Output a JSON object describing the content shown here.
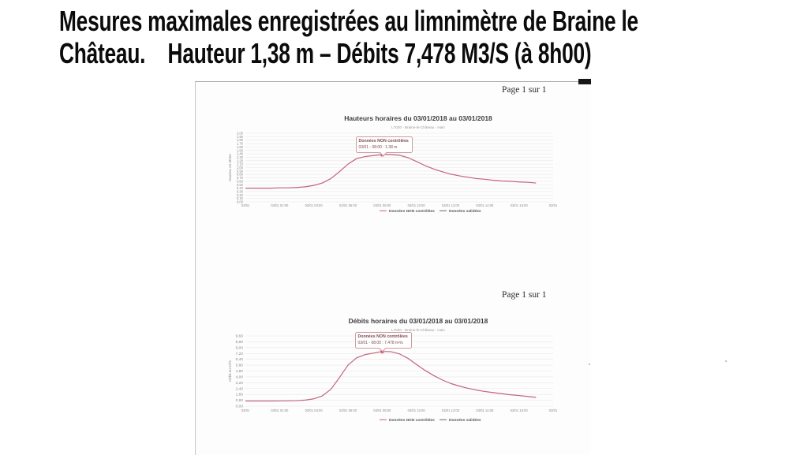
{
  "slide": {
    "title_line1": "Mesures maximales enregistrées au limnimètre de Braine le",
    "title_line2": "Château.    Hauteur 1,38 m – Débits 7,478 M3/S (à 8h00)"
  },
  "document": {
    "page_label": "Page 1 sur 1"
  },
  "colors": {
    "curve": "#c2647a",
    "marker": "#c63b4e",
    "marker_halo": "#eaa8b2",
    "grid": "#e7e7e7",
    "tick_text": "#8a8a8a",
    "chart_title": "#3d3d3d",
    "subtitle_text": "#9a9a9a",
    "legend_text": "#555555",
    "legend_validated_dash": "#5a6b7a"
  },
  "chart_data": [
    {
      "type": "line",
      "title": "Hauteurs horaires du 03/01/2018 au 03/01/2018",
      "subtitle": "L7020 - Braine-le-Château - Hain",
      "ylabel": "Hauteur en Mètre",
      "ylim": [
        0,
        2.0
      ],
      "ystep": 0.1,
      "xlim": [
        0,
        18
      ],
      "x_tick_hours": [
        0,
        2,
        4,
        6,
        8,
        10,
        12,
        14,
        16,
        18
      ],
      "x_tick_labels": [
        "03/01",
        "03/01 02:00",
        "03/01 04:00",
        "03/01 06:00",
        "03/01 08:00",
        "03/01 10:00",
        "03/01 12:00",
        "03/01 14:00",
        "03/01 16:00",
        "03/01"
      ],
      "grid": true,
      "legend_position": "bottom",
      "legend": [
        "Données NON contrôlées",
        "Données validées"
      ],
      "series": [
        {
          "name": "Données NON contrôlées",
          "x": [
            0,
            0.5,
            1,
            1.5,
            2,
            2.5,
            3,
            3.5,
            4,
            4.5,
            5,
            5.5,
            6,
            6.5,
            7,
            7.5,
            8,
            8.5,
            9,
            9.5,
            10,
            10.5,
            11,
            11.5,
            12,
            12.5,
            13,
            13.5,
            14,
            14.5,
            15,
            15.5,
            16,
            16.5,
            17
          ],
          "y": [
            0.4,
            0.4,
            0.4,
            0.4,
            0.41,
            0.41,
            0.42,
            0.44,
            0.48,
            0.55,
            0.68,
            0.88,
            1.1,
            1.26,
            1.32,
            1.35,
            1.38,
            1.38,
            1.36,
            1.29,
            1.18,
            1.06,
            0.96,
            0.88,
            0.81,
            0.76,
            0.72,
            0.68,
            0.66,
            0.63,
            0.61,
            0.6,
            0.58,
            0.57,
            0.55
          ]
        }
      ],
      "annotation": {
        "line1": "Données NON contrôlées",
        "line2": "03/01 - 08:00 : 1.38 m",
        "at_x": 8,
        "at_y": 1.38
      }
    },
    {
      "type": "line",
      "title": "Débits horaires du 03/01/2018 au 03/01/2018",
      "subtitle": "L7020 - Braine-le-Château - Hain",
      "ylabel": "Débit en m³/s",
      "ylim": [
        0,
        9.6
      ],
      "ystep": 0.8,
      "xlim": [
        0,
        18
      ],
      "x_tick_hours": [
        0,
        2,
        4,
        6,
        8,
        10,
        12,
        14,
        16,
        18
      ],
      "x_tick_labels": [
        "03/01",
        "03/01 02:00",
        "03/01 04:00",
        "03/01 06:00",
        "03/01 08:00",
        "03/01 10:00",
        "03/01 12:00",
        "03/01 14:00",
        "03/01 16:00",
        "03/01"
      ],
      "grid": true,
      "legend_position": "bottom",
      "legend": [
        "Données NON contrôlées",
        "Données validées"
      ],
      "series": [
        {
          "name": "Données NON contrôlées",
          "x": [
            0,
            0.5,
            1,
            1.5,
            2,
            2.5,
            3,
            3.5,
            4,
            4.5,
            5,
            5.5,
            6,
            6.5,
            7,
            7.5,
            8,
            8.5,
            9,
            9.5,
            10,
            10.5,
            11,
            11.5,
            12,
            12.5,
            13,
            13.5,
            14,
            14.5,
            15,
            15.5,
            16,
            16.5,
            17
          ],
          "y": [
            0.7,
            0.7,
            0.7,
            0.7,
            0.71,
            0.72,
            0.75,
            0.82,
            1.0,
            1.4,
            2.3,
            3.9,
            5.6,
            6.6,
            7.05,
            7.25,
            7.478,
            7.45,
            7.15,
            6.55,
            5.7,
            4.9,
            4.2,
            3.6,
            3.1,
            2.75,
            2.45,
            2.2,
            2.0,
            1.85,
            1.7,
            1.55,
            1.45,
            1.32,
            1.2
          ]
        }
      ],
      "annotation": {
        "line1": "Données NON contrôlées",
        "line2": "03/01 - 08:00 : 7.478 m³/s",
        "at_x": 8,
        "at_y": 7.478
      }
    }
  ]
}
